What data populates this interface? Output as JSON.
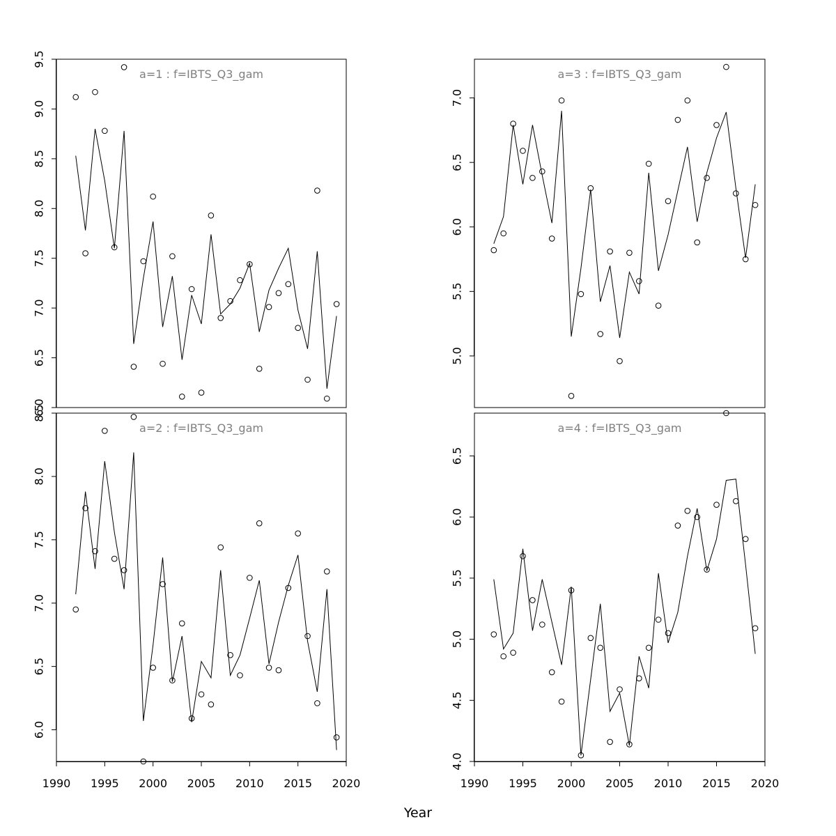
{
  "xlabel": "Year",
  "colors": {
    "line": "#000000",
    "points": "#000000",
    "title": "#808080",
    "frame": "#000000"
  },
  "chart_data": [
    {
      "type": "scatter",
      "title": "a=1  :  f=IBTS_Q3_gam",
      "xlabel": "Year",
      "ylabel": "",
      "xlim": [
        1990,
        2020
      ],
      "ylim": [
        6.0,
        9.5
      ],
      "yticks": [
        6.0,
        6.5,
        7.0,
        7.5,
        8.0,
        8.5,
        9.0,
        9.5
      ],
      "ytick_labels": [
        "6.0",
        "6.5",
        "7.0",
        "7.5",
        "8.0",
        "8.5",
        "9.0",
        "9.5"
      ],
      "xticks_shown": false,
      "x": [
        1992,
        1993,
        1994,
        1995,
        1996,
        1997,
        1998,
        1999,
        2000,
        2001,
        2002,
        2003,
        2004,
        2005,
        2006,
        2007,
        2008,
        2009,
        2010,
        2011,
        2012,
        2013,
        2014,
        2015,
        2016,
        2017,
        2018,
        2019
      ],
      "series": [
        {
          "kind": "points",
          "values": [
            9.12,
            7.55,
            9.17,
            8.78,
            7.61,
            9.42,
            6.41,
            7.47,
            8.12,
            6.44,
            7.52,
            6.11,
            7.19,
            6.15,
            7.93,
            6.9,
            7.07,
            7.28,
            7.44,
            6.39,
            7.01,
            7.15,
            7.24,
            6.8,
            6.28,
            8.18,
            6.09,
            7.04
          ]
        },
        {
          "kind": "line",
          "values": [
            8.53,
            7.78,
            8.8,
            8.28,
            7.6,
            8.78,
            6.64,
            7.3,
            7.87,
            6.81,
            7.32,
            6.48,
            7.13,
            6.84,
            7.74,
            6.94,
            7.04,
            7.2,
            7.45,
            6.76,
            7.18,
            7.4,
            7.6,
            6.98,
            6.59,
            7.57,
            6.19,
            6.92
          ]
        }
      ]
    },
    {
      "type": "scatter",
      "title": "a=3  :  f=IBTS_Q3_gam",
      "xlabel": "Year",
      "ylabel": "",
      "xlim": [
        1990,
        2020
      ],
      "ylim": [
        4.6,
        7.3
      ],
      "yticks": [
        5.0,
        5.5,
        6.0,
        6.5,
        7.0
      ],
      "ytick_labels": [
        "5.0",
        "5.5",
        "6.0",
        "6.5",
        "7.0"
      ],
      "xticks_shown": false,
      "x": [
        1992,
        1993,
        1994,
        1995,
        1996,
        1997,
        1998,
        1999,
        2000,
        2001,
        2002,
        2003,
        2004,
        2005,
        2006,
        2007,
        2008,
        2009,
        2010,
        2011,
        2012,
        2013,
        2014,
        2015,
        2016,
        2017,
        2018,
        2019
      ],
      "series": [
        {
          "kind": "points",
          "values": [
            5.82,
            5.95,
            6.8,
            6.59,
            6.38,
            6.43,
            5.91,
            6.98,
            4.69,
            5.48,
            6.3,
            5.17,
            5.81,
            4.96,
            5.8,
            5.58,
            6.49,
            5.39,
            6.2,
            6.83,
            6.98,
            5.88,
            6.38,
            6.79,
            7.24,
            6.26,
            5.75,
            6.17
          ]
        },
        {
          "kind": "line",
          "values": [
            5.87,
            6.08,
            6.79,
            6.33,
            6.79,
            6.4,
            6.03,
            6.9,
            5.15,
            5.68,
            6.29,
            5.42,
            5.7,
            5.14,
            5.65,
            5.48,
            6.42,
            5.66,
            5.94,
            6.28,
            6.62,
            6.04,
            6.42,
            6.69,
            6.89,
            6.3,
            5.76,
            6.33
          ]
        }
      ]
    },
    {
      "type": "scatter",
      "title": "a=2  :  f=IBTS_Q3_gam",
      "xlabel": "Year",
      "ylabel": "",
      "xlim": [
        1990,
        2020
      ],
      "ylim": [
        5.75,
        8.5
      ],
      "yticks": [
        6.0,
        6.5,
        7.0,
        7.5,
        8.0,
        8.5
      ],
      "ytick_labels": [
        "6.0",
        "6.5",
        "7.0",
        "7.5",
        "8.0",
        "8.5"
      ],
      "xticks": [
        1990,
        1995,
        2000,
        2005,
        2010,
        2015,
        2020
      ],
      "xtick_labels": [
        "1990",
        "1995",
        "2000",
        "2005",
        "2010",
        "2015",
        "2020"
      ],
      "x": [
        1992,
        1993,
        1994,
        1995,
        1996,
        1997,
        1998,
        1999,
        2000,
        2001,
        2002,
        2003,
        2004,
        2005,
        2006,
        2007,
        2008,
        2009,
        2010,
        2011,
        2012,
        2013,
        2014,
        2015,
        2016,
        2017,
        2018,
        2019
      ],
      "series": [
        {
          "kind": "points",
          "values": [
            6.95,
            7.75,
            7.41,
            8.36,
            7.35,
            7.26,
            8.47,
            5.75,
            6.49,
            7.15,
            6.39,
            6.84,
            6.09,
            6.28,
            6.2,
            7.44,
            6.59,
            6.43,
            7.2,
            7.63,
            6.49,
            6.47,
            7.12,
            7.55,
            6.74,
            6.21,
            7.25,
            5.94
          ]
        },
        {
          "kind": "line",
          "values": [
            7.07,
            7.88,
            7.27,
            8.12,
            7.56,
            7.11,
            8.19,
            6.07,
            6.67,
            7.36,
            6.38,
            6.74,
            6.06,
            6.54,
            6.41,
            7.26,
            6.43,
            6.59,
            6.88,
            7.18,
            6.52,
            6.85,
            7.14,
            7.38,
            6.7,
            6.3,
            7.11,
            5.84
          ]
        }
      ]
    },
    {
      "type": "scatter",
      "title": "a=4  :  f=IBTS_Q3_gam",
      "xlabel": "Year",
      "ylabel": "",
      "xlim": [
        1990,
        2020
      ],
      "ylim": [
        4.0,
        6.85
      ],
      "yticks": [
        4.0,
        4.5,
        5.0,
        5.5,
        6.0,
        6.5
      ],
      "ytick_labels": [
        "4.0",
        "4.5",
        "5.0",
        "5.5",
        "6.0",
        "6.5"
      ],
      "xticks": [
        1990,
        1995,
        2000,
        2005,
        2010,
        2015,
        2020
      ],
      "xtick_labels": [
        "1990",
        "1995",
        "2000",
        "2005",
        "2010",
        "2015",
        "2020"
      ],
      "x": [
        1992,
        1993,
        1994,
        1995,
        1996,
        1997,
        1998,
        1999,
        2000,
        2001,
        2002,
        2003,
        2004,
        2005,
        2006,
        2007,
        2008,
        2009,
        2010,
        2011,
        2012,
        2013,
        2014,
        2015,
        2016,
        2017,
        2018,
        2019
      ],
      "series": [
        {
          "kind": "points",
          "values": [
            5.04,
            4.86,
            4.89,
            5.68,
            5.32,
            5.12,
            4.73,
            4.49,
            5.4,
            4.05,
            5.01,
            4.93,
            4.16,
            4.59,
            4.14,
            4.68,
            4.93,
            5.16,
            5.05,
            5.93,
            6.05,
            6.0,
            5.57,
            6.1,
            6.85,
            6.13,
            5.82,
            5.09
          ]
        },
        {
          "kind": "line",
          "values": [
            5.49,
            4.92,
            5.05,
            5.74,
            5.07,
            5.49,
            5.14,
            4.79,
            5.43,
            4.05,
            4.67,
            5.29,
            4.41,
            4.56,
            4.13,
            4.86,
            4.6,
            5.54,
            4.97,
            5.22,
            5.68,
            6.07,
            5.56,
            5.82,
            6.3,
            6.31,
            5.61,
            4.88
          ]
        }
      ]
    }
  ]
}
